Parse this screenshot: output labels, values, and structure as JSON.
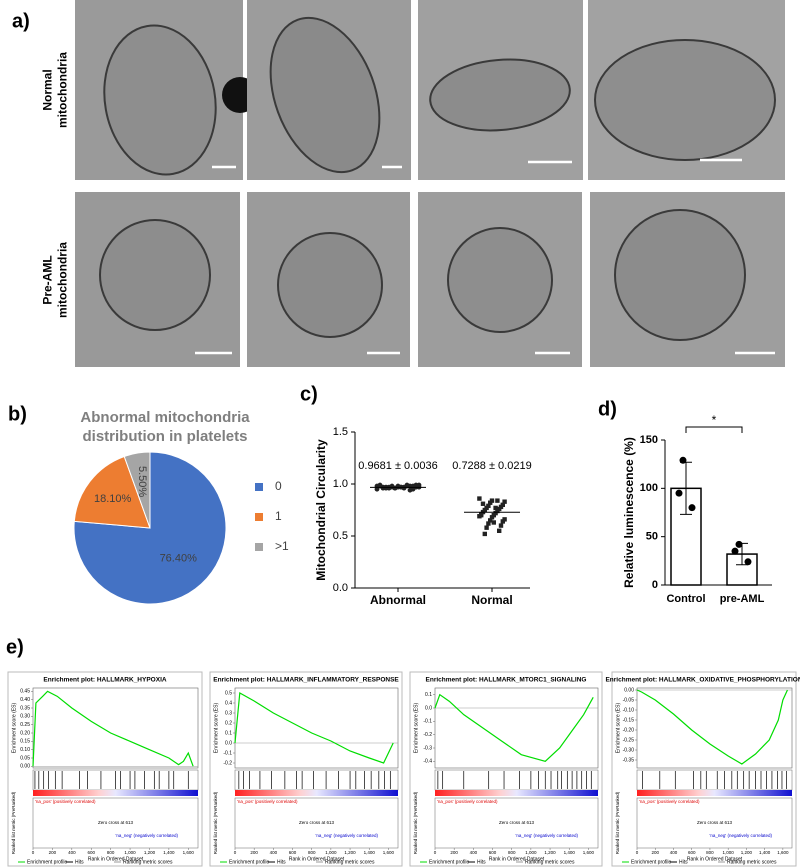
{
  "figure": {
    "panel_labels": [
      "a)",
      "b)",
      "c)",
      "d)",
      "e)"
    ],
    "row_labels": [
      [
        "Normal",
        "mitochondria"
      ],
      [
        "Pre-AML",
        "mitochondria"
      ]
    ]
  },
  "chart_data": [
    {
      "type": "pie",
      "title": [
        "Abnormal mitochondria",
        "distribution in platelets"
      ],
      "categories": [
        "0",
        "1",
        ">1"
      ],
      "values": [
        76.4,
        18.1,
        5.5
      ],
      "value_labels": [
        "76.40%",
        "18.10%",
        "5.50%"
      ],
      "colors": [
        "#4472c4",
        "#ed7d31",
        "#a5a5a5"
      ],
      "legend": "right"
    },
    {
      "type": "dot",
      "ylabel": "Mitochondrial Circularity",
      "categories": [
        "Abnormal",
        "Normal"
      ],
      "groups": [
        {
          "values": [
            0.98,
            0.97,
            0.99,
            0.96,
            0.97,
            0.98,
            0.95,
            0.97,
            0.98,
            0.96,
            0.99,
            0.97,
            0.96,
            0.98,
            0.97,
            0.95,
            0.98,
            0.97,
            0.96,
            0.99,
            0.97,
            0.98,
            0.96,
            0.94,
            0.97,
            0.98,
            0.96,
            0.97,
            0.99,
            0.97
          ],
          "mean": 0.9681,
          "annotation": "0.9681 ± 0.0036"
        },
        {
          "values": [
            0.86,
            0.84,
            0.83,
            0.82,
            0.8,
            0.79,
            0.78,
            0.77,
            0.76,
            0.75,
            0.74,
            0.73,
            0.72,
            0.71,
            0.7,
            0.69,
            0.68,
            0.66,
            0.65,
            0.64,
            0.62,
            0.6,
            0.58,
            0.55,
            0.52,
            0.84,
            0.81,
            0.77,
            0.7,
            0.63
          ],
          "mean": 0.7288,
          "annotation": "0.7288 ± 0.0219"
        }
      ],
      "ylim": [
        0,
        1.5
      ],
      "yticks": [
        {
          "value": 0,
          "label": "0.0"
        },
        0.5,
        {
          "value": 1,
          "label": "1.0"
        },
        1.5
      ],
      "color": "#222222"
    },
    {
      "type": "bar",
      "ylabel": "Relative luminescence (%)",
      "categories": [
        "Control",
        "pre-AML"
      ],
      "values": [
        100,
        32
      ],
      "errors": [
        27,
        11
      ],
      "points": [
        [
          129,
          95,
          80
        ],
        [
          42,
          35,
          24
        ]
      ],
      "ylim": [
        0,
        150
      ],
      "yticks": [
        0,
        50,
        100,
        150
      ],
      "significance": "*",
      "color": "#ffffff"
    },
    {
      "type": "gsea",
      "title": "Enrichment plot: HALLMARK_HYPOXIA",
      "x": [
        0,
        30,
        100,
        150,
        250,
        400,
        600,
        800,
        1000,
        1200,
        1400,
        1500,
        1550,
        1600,
        1650
      ],
      "values": [
        0,
        0.38,
        0.42,
        0.45,
        0.42,
        0.35,
        0.27,
        0.2,
        0.15,
        0.1,
        0.05,
        0.01,
        0.03,
        0.08,
        0
      ],
      "hits": [
        20,
        60,
        110,
        160,
        230,
        300,
        480,
        560,
        700,
        850,
        900,
        1000,
        1050,
        1150,
        1250,
        1300,
        1400,
        1450,
        1600
      ],
      "xlim": [
        0,
        1700
      ],
      "ylim": [
        -0.01,
        0.47
      ],
      "yticks": [
        0.45,
        {
          "value": 0.4,
          "label": "0.40"
        },
        0.35,
        {
          "value": 0.3,
          "label": "0.30"
        },
        0.25,
        {
          "value": 0.2,
          "label": "0.20"
        },
        0.15,
        {
          "value": 0.1,
          "label": "0.10"
        },
        0.05,
        {
          "value": 0,
          "label": "0.00"
        }
      ],
      "xticks": [
        0,
        200,
        400,
        600,
        800,
        {
          "value": 1000,
          "label": "1,000"
        },
        {
          "value": 1200,
          "label": "1,200"
        },
        {
          "value": 1400,
          "label": "1,400"
        },
        {
          "value": 1600,
          "label": "1,600"
        }
      ],
      "ylabel": "Enrichment score (ES)",
      "xlabel": "Rank in Ordered Dataset",
      "metric_label": "Ranked list metric (PreRanked)",
      "pos_label": "'na_pos' (positively correlated)",
      "neg_label": "'na_neg' (negatively correlated)",
      "zero_cross": "Zero cross at 613",
      "legend": [
        "Enrichment profile",
        "Hits",
        "Ranking metric scores"
      ],
      "color": "#00dd00"
    },
    {
      "type": "gsea",
      "title": "Enrichment plot: HALLMARK_INFLAMMATORY_RESPONSE",
      "x": [
        0,
        50,
        200,
        400,
        600,
        800,
        1000,
        1200,
        1400,
        1550,
        1650
      ],
      "values": [
        0,
        0.5,
        0.42,
        0.3,
        0.2,
        0.1,
        0.02,
        -0.08,
        -0.15,
        -0.2,
        0
      ],
      "hits": [
        40,
        90,
        150,
        260,
        380,
        520,
        640,
        700,
        820,
        950,
        1080,
        1200,
        1260,
        1350,
        1420,
        1500,
        1560,
        1620
      ],
      "xlim": [
        0,
        1700
      ],
      "ylim": [
        -0.25,
        0.55
      ],
      "yticks": [
        0.5,
        0.4,
        0.3,
        0.2,
        0.1,
        {
          "value": 0,
          "label": "0.0"
        },
        -0.1,
        -0.2
      ],
      "xticks": [
        0,
        200,
        400,
        600,
        800,
        {
          "value": 1000,
          "label": "1,000"
        },
        {
          "value": 1200,
          "label": "1,200"
        },
        {
          "value": 1400,
          "label": "1,400"
        },
        {
          "value": 1600,
          "label": "1,600"
        }
      ],
      "ylabel": "Enrichment score (ES)",
      "xlabel": "Rank in Ordered Dataset",
      "metric_label": "Ranked list metric (PreRanked)",
      "pos_label": "'na_pos' (positively correlated)",
      "neg_label": "'na_neg' (negatively correlated)",
      "zero_cross": "Zero cross at 613",
      "legend": [
        "Enrichment profile",
        "Hits",
        "Ranking metric scores"
      ],
      "color": "#00dd00"
    },
    {
      "type": "gsea",
      "title": "Enrichment plot: HALLMARK_MTORC1_SIGNALING",
      "x": [
        0,
        50,
        150,
        300,
        500,
        700,
        900,
        1150,
        1300,
        1450,
        1550,
        1650
      ],
      "values": [
        0,
        0.1,
        0.05,
        -0.05,
        -0.15,
        -0.25,
        -0.35,
        -0.4,
        -0.3,
        -0.15,
        -0.05,
        0.08
      ],
      "hits": [
        30,
        80,
        300,
        560,
        720,
        880,
        1000,
        1080,
        1150,
        1210,
        1280,
        1320,
        1380,
        1430,
        1480,
        1530,
        1580,
        1630
      ],
      "xlim": [
        0,
        1700
      ],
      "ylim": [
        -0.45,
        0.15
      ],
      "yticks": [
        0.1,
        {
          "value": 0,
          "label": "0.0"
        },
        -0.1,
        -0.2,
        -0.3,
        -0.4
      ],
      "xticks": [
        0,
        200,
        400,
        600,
        800,
        {
          "value": 1000,
          "label": "1,000"
        },
        {
          "value": 1200,
          "label": "1,200"
        },
        {
          "value": 1400,
          "label": "1,400"
        },
        {
          "value": 1600,
          "label": "1,600"
        }
      ],
      "ylabel": "Enrichment score (ES)",
      "xlabel": "Rank in Ordered Dataset",
      "metric_label": "Ranked list metric (PreRanked)",
      "pos_label": "'na_pos' (positively correlated)",
      "neg_label": "'na_neg' (negatively correlated)",
      "zero_cross": "Zero cross at 613",
      "legend": [
        "Enrichment profile",
        "Hits",
        "Ranking metric scores"
      ],
      "color": "#00dd00"
    },
    {
      "type": "gsea",
      "title": "Enrichment plot: HALLMARK_OXIDATIVE_PHOSPHORYLATION",
      "x": [
        0,
        50,
        200,
        400,
        600,
        800,
        1000,
        1150,
        1300,
        1450,
        1550,
        1600,
        1650
      ],
      "values": [
        0,
        -0.01,
        -0.05,
        -0.12,
        -0.2,
        -0.27,
        -0.33,
        -0.37,
        -0.32,
        -0.25,
        -0.15,
        -0.05,
        0
      ],
      "hits": [
        60,
        250,
        420,
        620,
        700,
        760,
        880,
        960,
        1040,
        1100,
        1170,
        1230,
        1300,
        1360,
        1420,
        1480,
        1540,
        1590,
        1640
      ],
      "xlim": [
        0,
        1700
      ],
      "ylim": [
        -0.39,
        0.01
      ],
      "yticks": [
        {
          "value": 0,
          "label": "0.00"
        },
        -0.05,
        {
          "value": -0.1,
          "label": "-0.10"
        },
        -0.15,
        {
          "value": -0.2,
          "label": "-0.20"
        },
        -0.25,
        {
          "value": -0.3,
          "label": "-0.30"
        },
        -0.35
      ],
      "xticks": [
        0,
        200,
        400,
        600,
        800,
        {
          "value": 1000,
          "label": "1,000"
        },
        {
          "value": 1200,
          "label": "1,200"
        },
        {
          "value": 1400,
          "label": "1,400"
        },
        {
          "value": 1600,
          "label": "1,600"
        }
      ],
      "ylabel": "Enrichment score (ES)",
      "xlabel": "Rank in Ordered Dataset",
      "metric_label": "Ranked list metric (PreRanked)",
      "pos_label": "'na_pos' (positively correlated)",
      "neg_label": "'na_neg' (negatively correlated)",
      "zero_cross": "Zero cross at 613",
      "legend": [
        "Enrichment profile",
        "Hits",
        "Ranking metric scores"
      ],
      "color": "#00dd00"
    }
  ]
}
